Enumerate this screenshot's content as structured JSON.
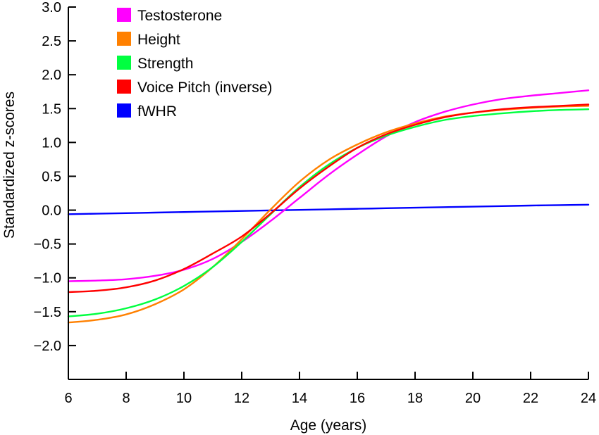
{
  "chart_data": {
    "type": "line",
    "title": "",
    "xlabel": "Age (years)",
    "ylabel": "Standardized z-scores",
    "xlim": [
      6,
      24
    ],
    "ylim": [
      -2.5,
      3.0
    ],
    "x_ticks": [
      6,
      8,
      10,
      12,
      14,
      16,
      18,
      20,
      22,
      24
    ],
    "x_tick_labels": [
      "6",
      "8",
      "10",
      "12",
      "14",
      "16",
      "18",
      "20",
      "22",
      "24"
    ],
    "y_ticks": [
      3.0,
      2.5,
      2.0,
      1.5,
      1.0,
      0.5,
      0.0,
      -0.5,
      -1.0,
      -1.5,
      -2.0
    ],
    "y_tick_labels": [
      "3.0",
      "2.5",
      "2.0",
      "1.5",
      "1.0",
      "0.5",
      "0.0",
      "−0.5",
      "−1.0",
      "−1.5",
      "−2.0"
    ],
    "grid": false,
    "legend_position": "top-left",
    "x": [
      6,
      7,
      8,
      9,
      10,
      11,
      12,
      13,
      14,
      15,
      16,
      17,
      18,
      19,
      20,
      21,
      22,
      23,
      24
    ],
    "series": [
      {
        "name": "Testosterone",
        "color": "#ff00ff",
        "values": [
          -1.05,
          -1.04,
          -1.02,
          -0.97,
          -0.88,
          -0.72,
          -0.47,
          -0.16,
          0.18,
          0.52,
          0.82,
          1.09,
          1.3,
          1.45,
          1.56,
          1.64,
          1.69,
          1.73,
          1.77
        ]
      },
      {
        "name": "Height",
        "color": "#ff8000",
        "values": [
          -1.66,
          -1.62,
          -1.54,
          -1.39,
          -1.17,
          -0.84,
          -0.43,
          0.01,
          0.42,
          0.74,
          0.97,
          1.15,
          1.28,
          1.38,
          1.44,
          1.48,
          1.51,
          1.53,
          1.54
        ]
      },
      {
        "name": "Strength",
        "color": "#00ff40",
        "values": [
          -1.57,
          -1.53,
          -1.45,
          -1.32,
          -1.12,
          -0.84,
          -0.47,
          -0.06,
          0.34,
          0.67,
          0.92,
          1.1,
          1.23,
          1.33,
          1.39,
          1.43,
          1.46,
          1.48,
          1.49
        ]
      },
      {
        "name": "Voice Pitch (inverse)",
        "color": "#ff0000",
        "values": [
          -1.21,
          -1.19,
          -1.14,
          -1.04,
          -0.87,
          -0.64,
          -0.39,
          -0.05,
          0.32,
          0.64,
          0.92,
          1.12,
          1.26,
          1.37,
          1.44,
          1.49,
          1.52,
          1.54,
          1.56
        ]
      },
      {
        "name": "fWHR",
        "color": "#0000ff",
        "values": [
          -0.06,
          -0.052,
          -0.044,
          -0.036,
          -0.028,
          -0.02,
          -0.012,
          -0.004,
          0.004,
          0.012,
          0.02,
          0.028,
          0.036,
          0.044,
          0.052,
          0.06,
          0.068,
          0.074,
          0.08
        ]
      }
    ]
  }
}
